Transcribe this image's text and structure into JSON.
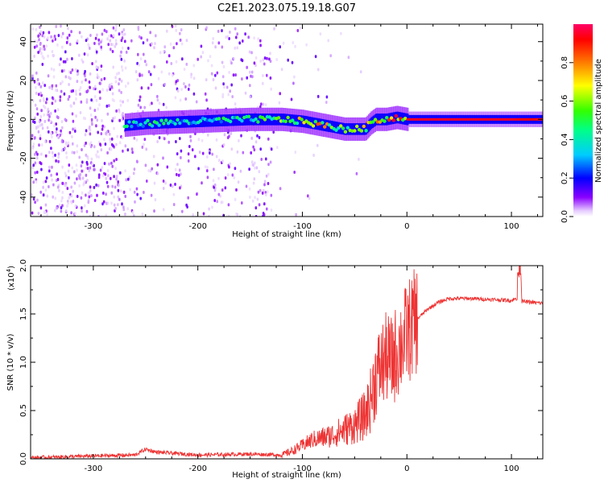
{
  "title": "C2E1.2023.075.19.18.G07",
  "colors": {
    "snr_line": "#ee3333",
    "axis": "#000000"
  },
  "chart_data": [
    {
      "type": "heatmap",
      "xlabel": "Height of straight line (km)",
      "ylabel": "Frequency (Hz)",
      "xlim": [
        -360,
        130
      ],
      "ylim": [
        -50,
        49
      ],
      "x_ticks": [
        -300,
        -200,
        -100,
        0,
        100
      ],
      "x_tick_labels": [
        "-300",
        "-200",
        "-100",
        "0",
        "100"
      ],
      "y_ticks": [
        40,
        20,
        0,
        -20,
        -40
      ],
      "y_tick_labels": [
        "40",
        "20",
        "0",
        "-20",
        "-40"
      ],
      "colorbar": {
        "label": "Normalized spectral amplitude",
        "range": [
          0,
          1
        ],
        "ticks": [
          0.0,
          0.2,
          0.4,
          0.6,
          0.8
        ],
        "tick_labels": [
          "0.0",
          "0.2",
          "0.4",
          "0.6",
          "0.8"
        ],
        "colormap": "rainbow"
      },
      "signal_track": {
        "x": [
          -270,
          -250,
          -200,
          -150,
          -120,
          -100,
          -80,
          -60,
          -40,
          -35,
          -30,
          -20,
          -10,
          0,
          10,
          50,
          100,
          130
        ],
        "frequency": [
          -3,
          -2,
          -1,
          0,
          0,
          -1,
          -3,
          -5,
          -5,
          -2,
          0,
          0,
          1,
          0,
          0,
          0,
          0,
          0
        ],
        "amplitude": [
          0.45,
          0.45,
          0.4,
          0.5,
          0.6,
          0.75,
          0.75,
          0.6,
          0.85,
          0.7,
          0.8,
          0.9,
          0.85,
          0.95,
          0.95,
          0.95,
          0.95,
          0.9
        ]
      },
      "noise_region": {
        "dense_until": -270,
        "sparse_until": -130,
        "fades_until": -40
      }
    },
    {
      "type": "line",
      "xlabel": "Height of straight line (km)",
      "ylabel": "SNR (10 * v/v)",
      "scale_label": "(x10",
      "scale_exponent": "4",
      "scale_close": ")",
      "xlim": [
        -360,
        130
      ],
      "ylim": [
        0,
        2.0
      ],
      "x_ticks": [
        -300,
        -200,
        -100,
        0,
        100
      ],
      "x_tick_labels": [
        "-300",
        "-200",
        "-100",
        "0",
        "100"
      ],
      "y_ticks": [
        0.0,
        0.5,
        1.0,
        1.5,
        2.0
      ],
      "y_tick_labels": [
        "0.0",
        "0.5",
        "1.0",
        "1.5",
        "2.0"
      ],
      "series": [
        {
          "x": [
            -360,
            -300,
            -260,
            -250,
            -240,
            -200,
            -150,
            -120,
            -110,
            -100,
            -90,
            -80,
            -70,
            -60,
            -50,
            -40,
            -35,
            -30,
            -25,
            -20,
            -15,
            -10,
            -5,
            0,
            10,
            20,
            30,
            40,
            60,
            80,
            100,
            105,
            108,
            110,
            120,
            130
          ],
          "y": [
            0.01,
            0.03,
            0.04,
            0.1,
            0.07,
            0.04,
            0.05,
            0.04,
            0.08,
            0.14,
            0.2,
            0.22,
            0.25,
            0.3,
            0.35,
            0.45,
            0.6,
            0.85,
            0.95,
            1.05,
            1.0,
            1.1,
            1.2,
            1.3,
            1.45,
            1.55,
            1.62,
            1.66,
            1.66,
            1.65,
            1.64,
            1.66,
            2.0,
            1.63,
            1.62,
            1.61
          ]
        }
      ]
    }
  ]
}
